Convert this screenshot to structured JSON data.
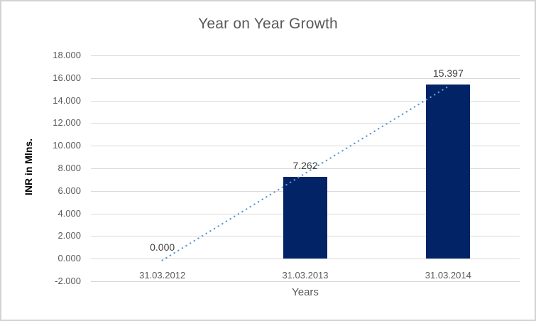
{
  "chart_data": {
    "type": "bar",
    "title": "Year on Year Growth",
    "xlabel": "Years",
    "ylabel": "INR in Mlns.",
    "categories": [
      "31.03.2012",
      "31.03.2013",
      "31.03.2014"
    ],
    "series": [
      {
        "name": "INR in Mlns.",
        "values": [
          0.0,
          7.262,
          15.397
        ]
      }
    ],
    "values": [
      0.0,
      7.262,
      15.397
    ],
    "value_labels": [
      "0.000",
      "7.262",
      "15.397"
    ],
    "ylim": [
      -2.0,
      18.0
    ],
    "ytick_step": 2.0,
    "yticks": [
      18,
      16,
      14,
      12,
      10,
      8,
      6,
      4,
      2,
      0,
      -2
    ],
    "ytick_labels": [
      "18.000",
      "16.000",
      "14.000",
      "12.000",
      "10.000",
      "8.000",
      "6.000",
      "4.000",
      "2.000",
      "0.000",
      "-2.000"
    ],
    "grid": true,
    "legend": "none",
    "trendline": {
      "type": "linear",
      "style": "dotted",
      "start_value": -0.146,
      "end_value": 15.252
    },
    "colors": {
      "bar": "#022366",
      "trendline": "#5b9bd5",
      "gridline": "#d9d9d9",
      "axis_text": "#595959",
      "data_label": "#404040",
      "x_axis_title": "#595959",
      "y_axis_title": "#000000",
      "title": "#595959",
      "frame_border": "#d3d3d3",
      "background": "#ffffff"
    }
  }
}
